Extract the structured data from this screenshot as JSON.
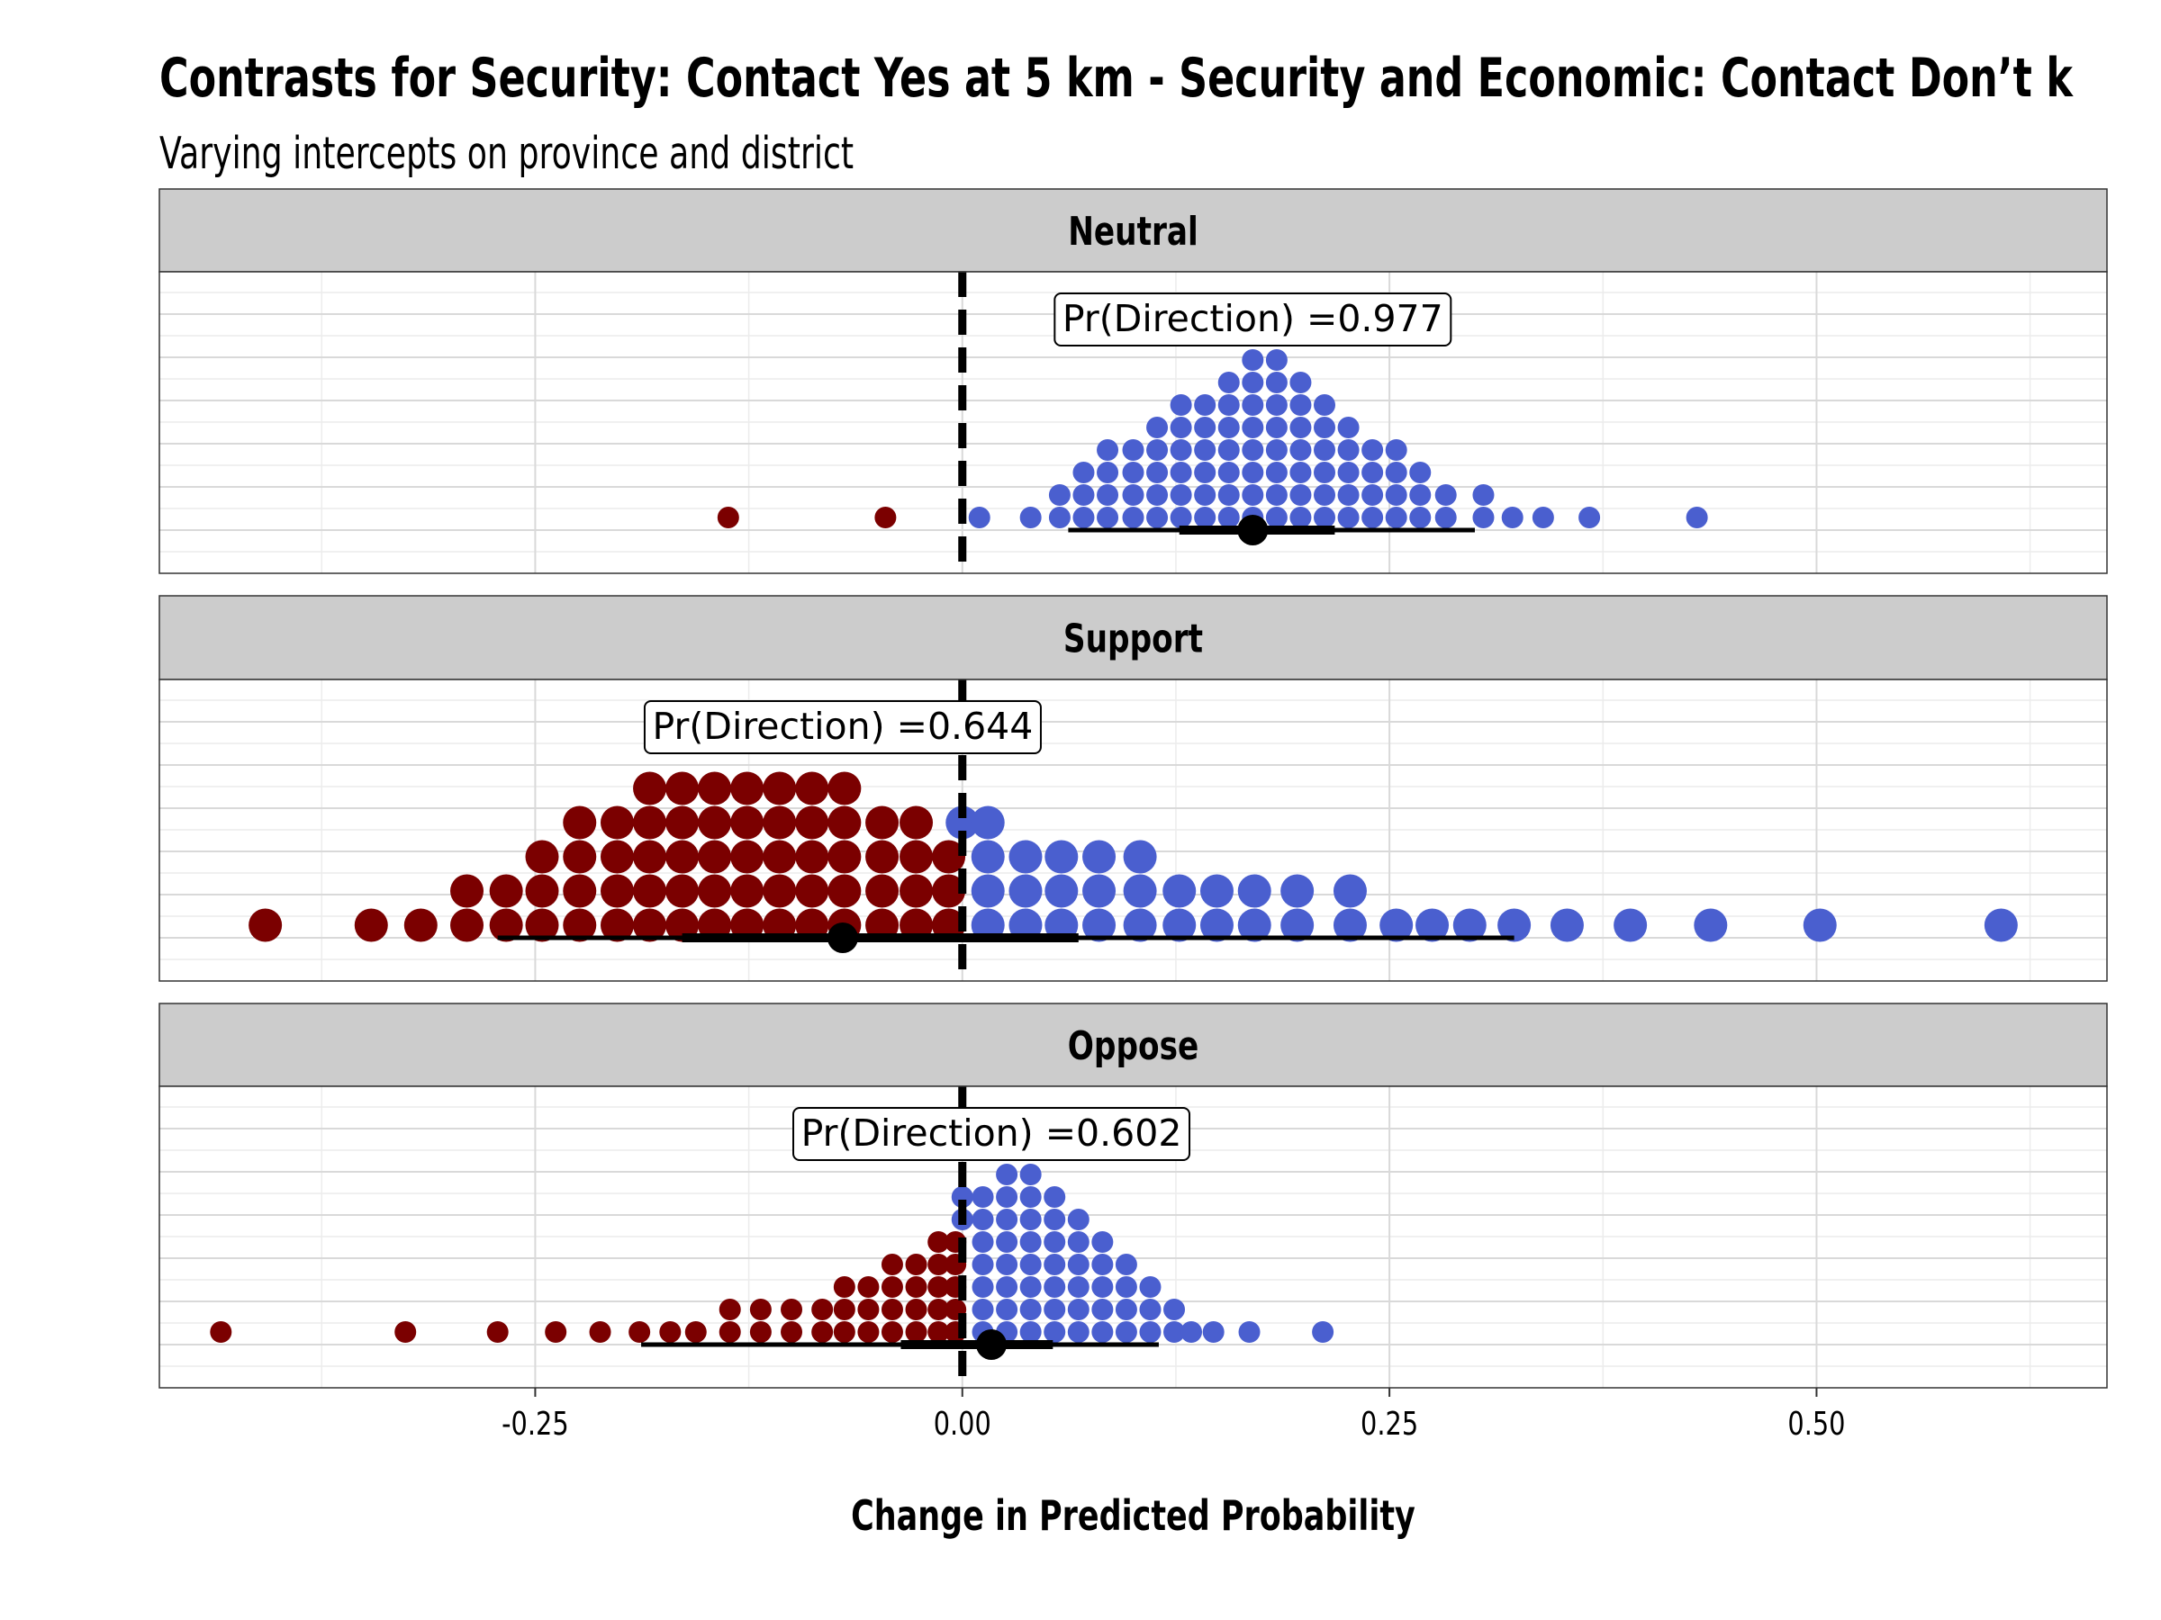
{
  "title": "Contrasts for Security: Contact Yes at 5 km - Security and Economic: Contact Don’t k",
  "subtitle": "Varying intercepts on province and district",
  "colors": {
    "positive": "#4a5fcf",
    "negative": "#7b0000",
    "strip": "#cccccc",
    "grid": "#d9d9d9"
  },
  "chart_data": {
    "type": "dotplot",
    "xlabel": "Change in Predicted Probability",
    "xlim": [
      -0.47,
      0.67
    ],
    "xticks": [
      -0.25,
      0.0,
      0.25,
      0.5
    ],
    "xtick_labels": [
      "-0.25",
      "0.00",
      "0.25",
      "0.50"
    ],
    "reference_line": 0,
    "grid": true,
    "panels": [
      {
        "label": "Neutral",
        "annotation": "Pr(Direction) =0.977",
        "annotation_x": 0.17,
        "point_estimate": 0.17,
        "interval_inner": [
          0.127,
          0.218
        ],
        "interval_outer": [
          0.062,
          0.3
        ],
        "dot_size": "small",
        "stacks": [
          {
            "x": -0.137,
            "n": 1
          },
          {
            "x": -0.045,
            "n": 1
          },
          {
            "x": 0.01,
            "n": 1
          },
          {
            "x": 0.04,
            "n": 1
          },
          {
            "x": 0.057,
            "n": 2
          },
          {
            "x": 0.071,
            "n": 3
          },
          {
            "x": 0.085,
            "n": 4
          },
          {
            "x": 0.1,
            "n": 4
          },
          {
            "x": 0.114,
            "n": 5
          },
          {
            "x": 0.128,
            "n": 6
          },
          {
            "x": 0.142,
            "n": 6
          },
          {
            "x": 0.156,
            "n": 7
          },
          {
            "x": 0.17,
            "n": 8
          },
          {
            "x": 0.184,
            "n": 8
          },
          {
            "x": 0.198,
            "n": 7
          },
          {
            "x": 0.212,
            "n": 6
          },
          {
            "x": 0.226,
            "n": 5
          },
          {
            "x": 0.24,
            "n": 4
          },
          {
            "x": 0.254,
            "n": 4
          },
          {
            "x": 0.268,
            "n": 3
          },
          {
            "x": 0.283,
            "n": 2
          },
          {
            "x": 0.305,
            "n": 2
          },
          {
            "x": 0.322,
            "n": 1
          },
          {
            "x": 0.34,
            "n": 1
          },
          {
            "x": 0.367,
            "n": 1
          },
          {
            "x": 0.43,
            "n": 1
          }
        ]
      },
      {
        "label": "Support",
        "annotation": "Pr(Direction) =0.644",
        "annotation_x": -0.07,
        "point_estimate": -0.07,
        "interval_inner": [
          -0.164,
          0.068
        ],
        "interval_outer": [
          -0.272,
          0.323
        ],
        "dot_size": "large",
        "stacks": [
          {
            "x": -0.408,
            "n": 1
          },
          {
            "x": -0.346,
            "n": 1
          },
          {
            "x": -0.317,
            "n": 1
          },
          {
            "x": -0.29,
            "n": 2
          },
          {
            "x": -0.267,
            "n": 2
          },
          {
            "x": -0.246,
            "n": 3
          },
          {
            "x": -0.224,
            "n": 4
          },
          {
            "x": -0.202,
            "n": 4
          },
          {
            "x": -0.183,
            "n": 5
          },
          {
            "x": -0.164,
            "n": 5
          },
          {
            "x": -0.145,
            "n": 5
          },
          {
            "x": -0.126,
            "n": 5
          },
          {
            "x": -0.107,
            "n": 5
          },
          {
            "x": -0.088,
            "n": 5
          },
          {
            "x": -0.069,
            "n": 5
          },
          {
            "x": -0.047,
            "n": 4
          },
          {
            "x": -0.027,
            "n": 4
          },
          {
            "x": -0.008,
            "n": 3
          },
          {
            "x": 0.0,
            "n": 1,
            "stack_from": 3
          },
          {
            "x": 0.015,
            "n": 4
          },
          {
            "x": 0.037,
            "n": 3
          },
          {
            "x": 0.058,
            "n": 3
          },
          {
            "x": 0.08,
            "n": 3
          },
          {
            "x": 0.104,
            "n": 3
          },
          {
            "x": 0.127,
            "n": 2
          },
          {
            "x": 0.149,
            "n": 2
          },
          {
            "x": 0.171,
            "n": 2
          },
          {
            "x": 0.196,
            "n": 2
          },
          {
            "x": 0.227,
            "n": 2
          },
          {
            "x": 0.254,
            "n": 1
          },
          {
            "x": 0.275,
            "n": 1
          },
          {
            "x": 0.297,
            "n": 1
          },
          {
            "x": 0.323,
            "n": 1
          },
          {
            "x": 0.354,
            "n": 1
          },
          {
            "x": 0.391,
            "n": 1
          },
          {
            "x": 0.438,
            "n": 1
          },
          {
            "x": 0.502,
            "n": 1
          },
          {
            "x": 0.608,
            "n": 1
          }
        ]
      },
      {
        "label": "Oppose",
        "annotation": "Pr(Direction) =0.602",
        "annotation_x": 0.017,
        "point_estimate": 0.017,
        "interval_inner": [
          -0.036,
          0.053
        ],
        "interval_outer": [
          -0.188,
          0.115
        ],
        "dot_size": "small",
        "stacks": [
          {
            "x": -0.434,
            "n": 1
          },
          {
            "x": -0.326,
            "n": 1
          },
          {
            "x": -0.272,
            "n": 1
          },
          {
            "x": -0.238,
            "n": 1
          },
          {
            "x": -0.212,
            "n": 1
          },
          {
            "x": -0.189,
            "n": 1
          },
          {
            "x": -0.171,
            "n": 1
          },
          {
            "x": -0.156,
            "n": 1
          },
          {
            "x": -0.136,
            "n": 2
          },
          {
            "x": -0.118,
            "n": 2
          },
          {
            "x": -0.1,
            "n": 2
          },
          {
            "x": -0.082,
            "n": 2
          },
          {
            "x": -0.069,
            "n": 3
          },
          {
            "x": -0.055,
            "n": 3
          },
          {
            "x": -0.041,
            "n": 4
          },
          {
            "x": -0.027,
            "n": 4
          },
          {
            "x": -0.014,
            "n": 5
          },
          {
            "x": -0.004,
            "n": 5
          },
          {
            "x": 0.0,
            "n": 2,
            "stack_from": 5
          },
          {
            "x": 0.012,
            "n": 7
          },
          {
            "x": 0.026,
            "n": 8
          },
          {
            "x": 0.04,
            "n": 8
          },
          {
            "x": 0.054,
            "n": 7
          },
          {
            "x": 0.068,
            "n": 6
          },
          {
            "x": 0.082,
            "n": 5
          },
          {
            "x": 0.096,
            "n": 4
          },
          {
            "x": 0.11,
            "n": 3
          },
          {
            "x": 0.124,
            "n": 2
          },
          {
            "x": 0.134,
            "n": 1
          },
          {
            "x": 0.147,
            "n": 1
          },
          {
            "x": 0.168,
            "n": 1
          },
          {
            "x": 0.211,
            "n": 1
          }
        ]
      }
    ]
  }
}
